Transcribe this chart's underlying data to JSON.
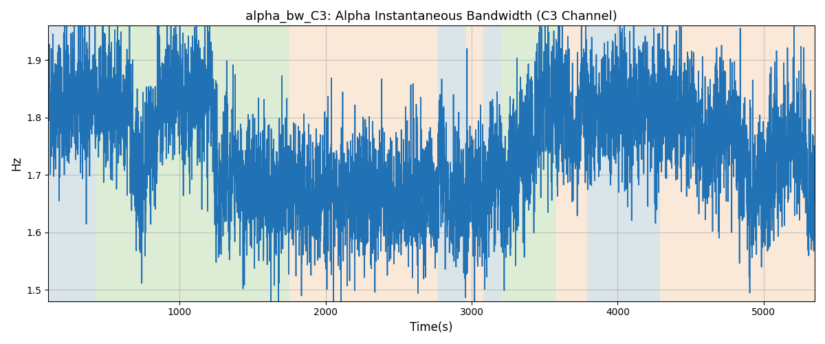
{
  "title": "alpha_bw_C3: Alpha Instantaneous Bandwidth (C3 Channel)",
  "xlabel": "Time(s)",
  "ylabel": "Hz",
  "xlim": [
    100,
    5350
  ],
  "ylim": [
    1.48,
    1.96
  ],
  "line_color": "#2171b5",
  "line_width": 1.2,
  "bg_bands": [
    {
      "xmin": 100,
      "xmax": 430,
      "color": "#aec6cf",
      "alpha": 0.45
    },
    {
      "xmin": 430,
      "xmax": 1750,
      "color": "#b5d5a0",
      "alpha": 0.45
    },
    {
      "xmin": 1750,
      "xmax": 2770,
      "color": "#f5d0a9",
      "alpha": 0.45
    },
    {
      "xmin": 2770,
      "xmax": 2960,
      "color": "#aec6cf",
      "alpha": 0.45
    },
    {
      "xmin": 2960,
      "xmax": 3080,
      "color": "#f5d0a9",
      "alpha": 0.45
    },
    {
      "xmin": 3080,
      "xmax": 3200,
      "color": "#aec6cf",
      "alpha": 0.45
    },
    {
      "xmin": 3200,
      "xmax": 3580,
      "color": "#b5d5a0",
      "alpha": 0.45
    },
    {
      "xmin": 3580,
      "xmax": 3790,
      "color": "#f5d0a9",
      "alpha": 0.45
    },
    {
      "xmin": 3790,
      "xmax": 4290,
      "color": "#aec6cf",
      "alpha": 0.45
    },
    {
      "xmin": 4290,
      "xmax": 5350,
      "color": "#f5d0a9",
      "alpha": 0.45
    }
  ],
  "seed": 42,
  "n_points": 5300,
  "yticks": [
    1.5,
    1.6,
    1.7,
    1.8,
    1.9
  ],
  "xticks": [
    1000,
    2000,
    3000,
    4000,
    5000
  ],
  "base_mean": 1.745,
  "noise_std": 0.065
}
